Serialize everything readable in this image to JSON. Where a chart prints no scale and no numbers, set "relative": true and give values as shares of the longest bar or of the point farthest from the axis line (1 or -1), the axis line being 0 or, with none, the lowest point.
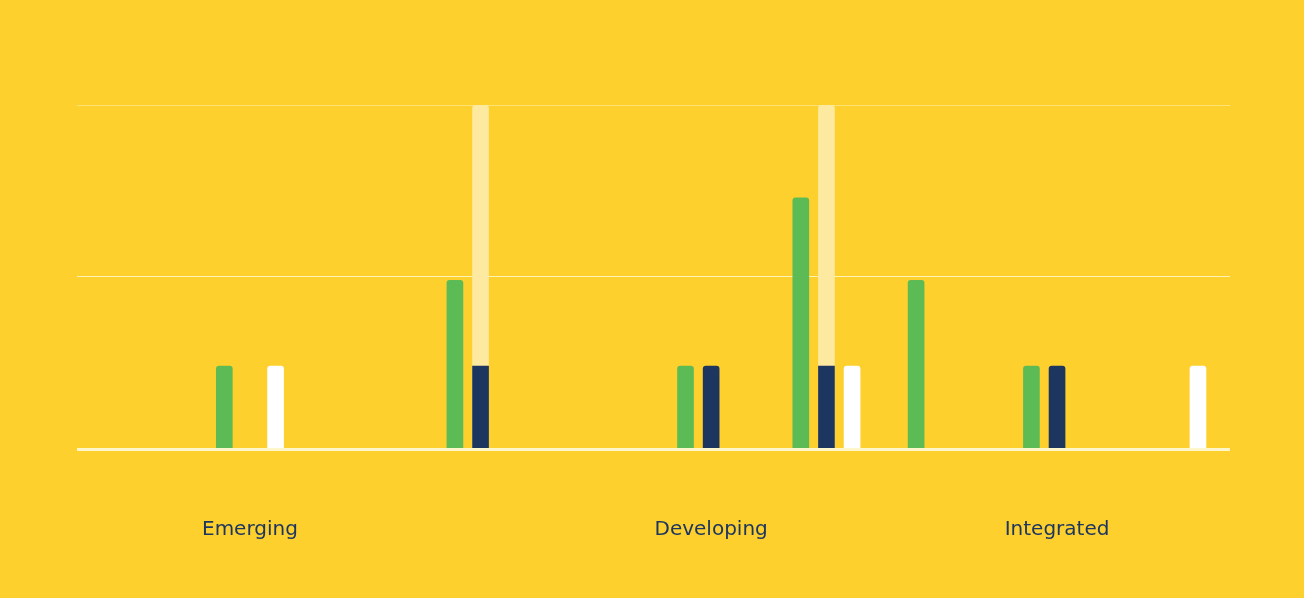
{
  "chart_data": {
    "type": "bar",
    "relative": true,
    "ref_lines": [
      {
        "axis": "y",
        "value": 0.5,
        "color": "#fff3b8"
      },
      {
        "axis": "y",
        "value": 1,
        "color": "#fff3b8"
      }
    ],
    "categories": [
      null,
      "Emerging",
      null,
      null,
      null,
      "Developing",
      null,
      null,
      "Integrated",
      null
    ],
    "series": [
      {
        "color": "#5dbb55",
        "values": [
          null,
          0.24,
          null,
          0.49,
          null,
          0.24,
          0.73,
          0.49,
          0.24,
          null
        ]
      },
      {
        "color": "#fde9a0",
        "values": [
          null,
          null,
          null,
          1,
          null,
          null,
          1,
          null,
          null,
          null
        ]
      },
      {
        "color": "#1c3660",
        "values": [
          null,
          null,
          null,
          0.24,
          null,
          0.24,
          0.24,
          null,
          0.24,
          null
        ]
      },
      {
        "color": "#ffffff",
        "values": [
          null,
          0.24,
          null,
          null,
          null,
          null,
          0.24,
          null,
          null,
          0.24
        ]
      }
    ]
  }
}
